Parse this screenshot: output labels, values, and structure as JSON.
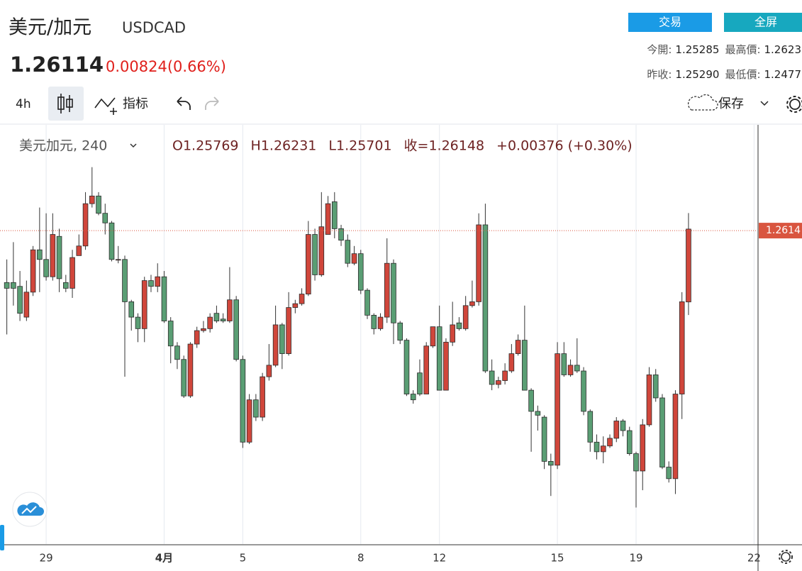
{
  "header": {
    "name": "美元/加元",
    "symbol": "USDCAD",
    "price": "1.26114",
    "change": "0.00824(0.66%)",
    "buttons": [
      "交易",
      "全屏"
    ],
    "stats": [
      [
        "今開:",
        "1.25285",
        "最高價:",
        "1.2623"
      ],
      [
        "昨收:",
        "1.25290",
        "最低價:",
        "1.2477"
      ]
    ]
  },
  "toolbar": {
    "interval": "4h",
    "indicators": "指标",
    "save": "保存"
  },
  "chart_data": {
    "type": "candlestick",
    "legend_title": "美元加元, 240",
    "legend_values": [
      "O1.25769",
      "H1.26231",
      "L1.25701",
      "收=1.26148",
      "+0.00376 (+0.30%)"
    ],
    "categories": [
      null,
      null,
      null,
      null,
      null,
      null,
      "29",
      null,
      null,
      null,
      null,
      null,
      null,
      null,
      null,
      null,
      null,
      null,
      null,
      null,
      null,
      null,
      null,
      null,
      "4月",
      null,
      null,
      null,
      null,
      null,
      null,
      null,
      null,
      null,
      null,
      null,
      "5",
      null,
      null,
      null,
      null,
      null,
      null,
      null,
      null,
      null,
      null,
      null,
      null,
      null,
      null,
      null,
      null,
      null,
      "8",
      null,
      null,
      null,
      null,
      null,
      null,
      null,
      null,
      null,
      null,
      null,
      "12",
      null,
      null,
      null,
      null,
      null,
      null,
      null,
      null,
      null,
      null,
      null,
      null,
      null,
      null,
      null,
      null,
      null,
      "15",
      null,
      null,
      null,
      null,
      null,
      null,
      null,
      null,
      null,
      null,
      null,
      "19",
      null,
      null,
      null,
      null,
      null,
      null,
      null,
      null,
      null,
      null,
      null,
      null,
      null,
      null,
      null,
      null,
      null,
      "22"
    ],
    "open": [
      1.2587,
      1.2587,
      1.2585,
      1.2569,
      1.2582,
      1.2604,
      1.2599,
      1.259,
      1.2611,
      1.2587,
      1.2584,
      1.2601,
      1.2606,
      1.2628,
      1.2632,
      1.2623,
      1.2618,
      1.2599,
      1.2599,
      1.2577,
      1.2569,
      1.2563,
      1.2588,
      1.2585,
      1.259,
      1.2567,
      1.2554,
      1.2547,
      1.2528,
      1.2555,
      1.2562,
      1.2563,
      1.2571,
      1.2568,
      1.2567,
      1.2578,
      1.2547,
      1.2504,
      1.2526,
      1.2517,
      1.2538,
      1.2544,
      1.2565,
      1.255,
      1.2574,
      1.2576,
      1.2581,
      1.2612,
      1.2591,
      1.2612,
      1.2629,
      1.2615,
      1.2609,
      1.2597,
      1.2602,
      1.2583,
      1.257,
      1.2563,
      1.2569,
      1.2597,
      1.2566,
      1.2557,
      1.2529,
      1.254,
      1.2529,
      1.2554,
      1.2564,
      1.2531,
      1.2556,
      1.2566,
      1.2563,
      1.2575,
      1.2577,
      1.2617,
      1.2541,
      1.2534,
      1.2536,
      1.2541,
      1.255,
      1.2557,
      1.2531,
      1.252,
      1.2517,
      1.2494,
      1.2492,
      1.255,
      1.2539,
      1.2544,
      1.2541,
      1.252,
      1.2504,
      1.2499,
      1.2502,
      1.2506,
      1.2515,
      1.251,
      1.2498,
      1.2489,
      1.2513,
      1.2539,
      1.2527,
      1.2491,
      1.2485,
      1.2529,
      1.25769,
      null,
      null,
      null,
      null,
      null,
      null,
      null,
      null,
      null,
      null
    ],
    "high": [
      1.2599,
      1.2608,
      1.2593,
      1.2588,
      1.2606,
      1.2626,
      1.2623,
      1.2623,
      1.2615,
      1.2591,
      1.2604,
      1.2612,
      1.2634,
      1.2647,
      1.2634,
      1.2628,
      1.2619,
      1.2606,
      1.2601,
      1.2578,
      1.2571,
      1.259,
      1.2591,
      1.2597,
      1.2593,
      1.2569,
      1.2556,
      1.2549,
      1.2556,
      1.2564,
      1.2567,
      1.2571,
      1.2575,
      1.2571,
      1.2595,
      1.258,
      1.2549,
      1.2529,
      1.2529,
      1.254,
      1.2555,
      1.2575,
      1.2566,
      1.2582,
      1.2578,
      1.2584,
      1.2619,
      1.2615,
      1.2634,
      1.2632,
      1.2634,
      1.2617,
      1.2612,
      1.2606,
      1.2604,
      1.2584,
      1.2571,
      1.2571,
      1.261,
      1.2599,
      1.2567,
      1.2558,
      1.2531,
      1.2547,
      1.2556,
      1.2564,
      1.2575,
      1.2558,
      1.2577,
      1.2569,
      1.258,
      1.2588,
      1.2623,
      1.2628,
      1.2547,
      1.2538,
      1.2545,
      1.2555,
      1.256,
      1.2575,
      1.2532,
      1.2523,
      1.2518,
      1.2498,
      1.2556,
      1.2556,
      1.2547,
      1.2558,
      1.2543,
      1.2521,
      1.2508,
      1.2507,
      1.2508,
      1.2517,
      1.2516,
      1.2512,
      1.2499,
      1.2516,
      1.2543,
      1.2542,
      1.2529,
      1.2494,
      1.2531,
      1.2582,
      1.26231,
      null,
      null,
      null,
      null,
      null,
      null,
      null,
      null,
      null,
      null
    ],
    "low": [
      1.256,
      1.2575,
      1.2567,
      1.2567,
      1.258,
      1.2582,
      1.2588,
      1.2588,
      1.2582,
      1.2582,
      1.2579,
      1.2601,
      1.2604,
      1.2626,
      1.2622,
      1.2612,
      1.2598,
      1.2597,
      1.2538,
      1.2562,
      1.2556,
      1.2556,
      1.2582,
      1.2582,
      1.2566,
      1.2545,
      1.2542,
      1.2527,
      1.2527,
      1.2553,
      1.2561,
      1.2561,
      1.2566,
      1.2566,
      1.2566,
      1.2546,
      1.2501,
      1.2503,
      1.2515,
      1.2515,
      1.2536,
      1.2543,
      1.2542,
      1.2549,
      1.2571,
      1.2575,
      1.258,
      1.2588,
      1.259,
      1.2612,
      1.261,
      1.2606,
      1.2595,
      1.2596,
      1.2581,
      1.2568,
      1.256,
      1.2562,
      1.2566,
      1.2555,
      1.2555,
      1.2528,
      1.2524,
      1.2528,
      1.2529,
      1.2553,
      1.2531,
      1.2531,
      1.2554,
      1.2562,
      1.2562,
      1.2574,
      1.2575,
      1.254,
      1.2531,
      1.2532,
      1.2534,
      1.254,
      1.2549,
      1.2531,
      1.2499,
      1.251,
      1.249,
      1.2476,
      1.249,
      1.2538,
      1.2538,
      1.254,
      1.2518,
      1.2499,
      1.2495,
      1.2493,
      1.2501,
      1.2504,
      1.2507,
      1.2497,
      1.247,
      1.2479,
      1.2512,
      1.2525,
      1.249,
      1.2483,
      1.2477,
      1.2516,
      1.25701,
      null,
      null,
      null,
      null,
      null,
      null,
      null,
      null,
      null,
      null
    ],
    "close": [
      1.2584,
      1.2584,
      1.2571,
      1.2582,
      1.2604,
      1.2599,
      1.259,
      1.2612,
      1.2589,
      1.2584,
      1.26,
      1.2606,
      1.2628,
      1.2632,
      1.2623,
      1.2618,
      1.2599,
      1.2599,
      1.2577,
      1.2569,
      1.2563,
      1.2588,
      1.2585,
      1.259,
      1.2567,
      1.2554,
      1.2547,
      1.2528,
      1.2555,
      1.2562,
      1.2563,
      1.2569,
      1.2567,
      1.2567,
      1.2578,
      1.2547,
      1.2504,
      1.2526,
      1.2517,
      1.2538,
      1.2544,
      1.2565,
      1.255,
      1.2574,
      1.2576,
      1.2581,
      1.2612,
      1.2591,
      1.2616,
      1.2628,
      1.2615,
      1.2609,
      1.2597,
      1.2602,
      1.2583,
      1.257,
      1.2563,
      1.2569,
      1.2597,
      1.2566,
      1.2557,
      1.2529,
      1.2526,
      1.2529,
      1.2554,
      1.2564,
      1.2531,
      1.2556,
      1.2565,
      1.2563,
      1.2575,
      1.2577,
      1.2617,
      1.2541,
      1.2534,
      1.2536,
      1.2541,
      1.255,
      1.2557,
      1.2531,
      1.252,
      1.2518,
      1.2494,
      1.2492,
      1.255,
      1.2539,
      1.2544,
      1.2541,
      1.252,
      1.2504,
      1.2499,
      1.2502,
      1.2506,
      1.2515,
      1.251,
      1.2498,
      1.2489,
      1.2513,
      1.2539,
      1.2527,
      1.2491,
      1.2485,
      1.2529,
      1.2577,
      1.26148,
      null,
      null,
      null,
      null,
      null,
      null,
      null,
      null,
      null,
      null
    ],
    "ylim": [
      1.2451,
      1.2669
    ],
    "up_color": "#d0463b",
    "down_color": "#5a9e74",
    "grid": true,
    "last_price": 1.2614,
    "last_price_color": "#d9553f"
  }
}
